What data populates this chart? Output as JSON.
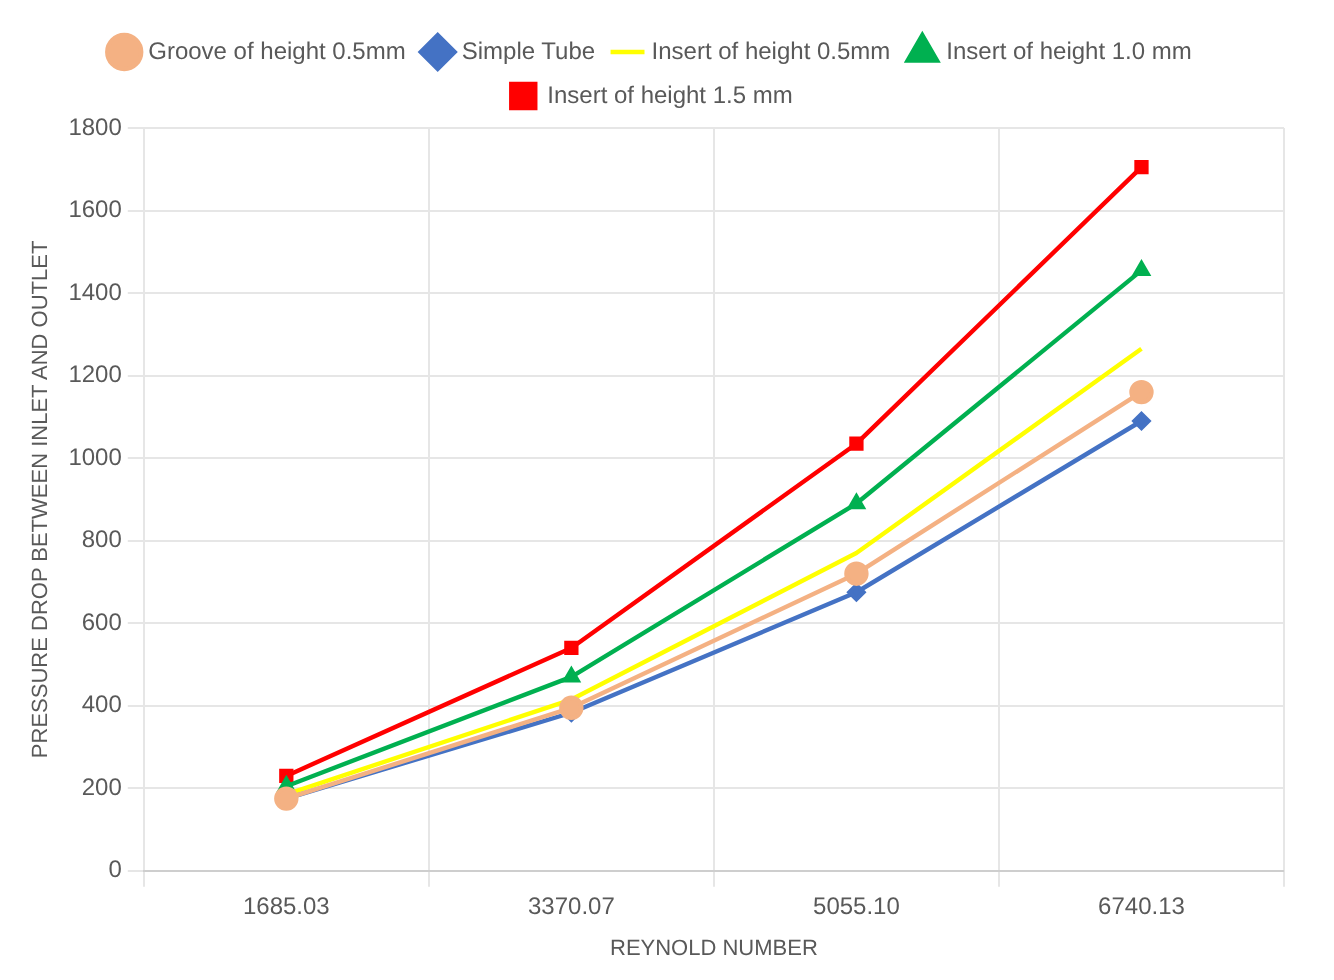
{
  "chart_data": {
    "type": "line",
    "xlabel": "REYNOLD NUMBER",
    "ylabel": "PRESSURE DROP BETWEEN INLET AND OUTLET",
    "categories": [
      "1685.03",
      "3370.07",
      "5055.10",
      "6740.13"
    ],
    "ylim": [
      0,
      1800
    ],
    "yticks": [
      0,
      200,
      400,
      600,
      800,
      1000,
      1200,
      1400,
      1600,
      1800
    ],
    "grid": true,
    "legend": "top",
    "line_style": "solid",
    "series": [
      {
        "name": "Simple Tube",
        "color": "#4472c4",
        "marker": "diamond",
        "values": [
          175,
          383,
          675,
          1090
        ]
      },
      {
        "name": "Insert of height 0.5mm",
        "color": "#ffff00",
        "marker": "none",
        "values": [
          185,
          415,
          770,
          1265
        ]
      },
      {
        "name": "Insert of height 1.0 mm",
        "color": "#00b050",
        "marker": "triangle",
        "values": [
          205,
          470,
          890,
          1455
        ]
      },
      {
        "name": "Insert of height 1.5 mm",
        "color": "#ff0000",
        "marker": "square",
        "values": [
          230,
          540,
          1035,
          1705
        ]
      },
      {
        "name": "Groove of height 0.5mm",
        "color": "#f4b183",
        "marker": "circle",
        "values": [
          175,
          395,
          720,
          1160
        ]
      }
    ]
  }
}
